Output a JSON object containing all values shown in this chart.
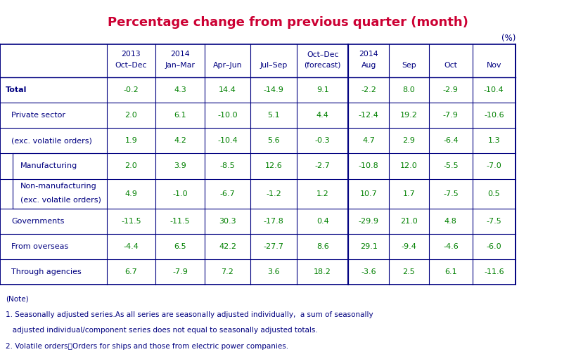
{
  "title": "Percentage change from previous quarter (month)",
  "title_color": "#cc0033",
  "unit_label": "(%)",
  "header_row1": [
    "",
    "2013",
    "2014",
    "",
    "",
    "2014",
    "",
    "",
    ""
  ],
  "header_row2": [
    "",
    "Oct–Dec",
    "Jan–Mar",
    "Apr–Jun",
    "Jul–Sep",
    "Oct–Dec",
    "Aug",
    "Sep",
    "Oct",
    "Nov"
  ],
  "header_row3": [
    "",
    "",
    "",
    "",
    "",
    "(forecast)",
    "",
    "",
    "",
    ""
  ],
  "col_headers": [
    {
      "line1": "",
      "line2": ""
    },
    {
      "line1": "2013",
      "line2": "Oct-Dec"
    },
    {
      "line1": "2014",
      "line2": "Jan-Mar"
    },
    {
      "line1": "",
      "line2": "Apr-Jun"
    },
    {
      "line1": "",
      "line2": "Jul-Sep"
    },
    {
      "line1": "",
      "line2": "Oct-Dec\n(forecast)"
    },
    {
      "line1": "2014",
      "line2": "Aug"
    },
    {
      "line1": "",
      "line2": "Sep"
    },
    {
      "line1": "",
      "line2": "Oct"
    },
    {
      "line1": "",
      "line2": "Nov"
    }
  ],
  "rows": [
    {
      "label": "Total",
      "indent": 0,
      "values": [
        "-0.2",
        "4.3",
        "14.4",
        "-14.9",
        "9.1",
        "-2.2",
        "8.0",
        "-2.9",
        "-10.4"
      ],
      "bold": true
    },
    {
      "label": "Private sector",
      "indent": 1,
      "values": [
        "2.0",
        "6.1",
        "-10.0",
        "5.1",
        "4.4",
        "-12.4",
        "19.2",
        "-7.9",
        "-10.6"
      ],
      "bold": false
    },
    {
      "label": "(exc. volatile orders)",
      "indent": 1,
      "values": [
        "1.9",
        "4.2",
        "-10.4",
        "5.6",
        "-0.3",
        "4.7",
        "2.9",
        "-6.4",
        "1.3"
      ],
      "bold": false
    },
    {
      "label": "Manufacturing",
      "indent": 2,
      "values": [
        "2.0",
        "3.9",
        "-8.5",
        "12.6",
        "-2.7",
        "-10.8",
        "12.0",
        "-5.5",
        "-7.0"
      ],
      "bold": false
    },
    {
      "label": "Non-manufacturing\n(exc. volatile orders)",
      "indent": 2,
      "values": [
        "4.9",
        "-1.0",
        "-6.7",
        "-1.2",
        "1.2",
        "10.7",
        "1.7",
        "-7.5",
        "0.5"
      ],
      "bold": false,
      "multiline": true
    },
    {
      "label": "Governments",
      "indent": 1,
      "values": [
        "-11.5",
        "-11.5",
        "30.3",
        "-17.8",
        "0.4",
        "-29.9",
        "21.0",
        "4.8",
        "-7.5"
      ],
      "bold": false
    },
    {
      "label": "From overseas",
      "indent": 1,
      "values": [
        "-4.4",
        "6.5",
        "42.2",
        "-27.7",
        "8.6",
        "29.1",
        "-9.4",
        "-4.6",
        "-6.0"
      ],
      "bold": false
    },
    {
      "label": "Through agencies",
      "indent": 1,
      "values": [
        "6.7",
        "-7.9",
        "7.2",
        "3.6",
        "18.2",
        "-3.6",
        "2.5",
        "6.1",
        "-11.6"
      ],
      "bold": false
    }
  ],
  "note_lines": [
    "(Note)",
    "1. Seasonally adjusted series.As all series are seasonally adjusted individually,  a sum of seasonally",
    "   adjusted individual/component series does not equal to seasonally adjusted totals.",
    "2. Volatile orders：Orders for ships and those from electric power companies."
  ],
  "border_color": "#000080",
  "text_color_label": "#000080",
  "text_color_value": "#008000",
  "note_color": "#000080",
  "bg_color": "#ffffff"
}
